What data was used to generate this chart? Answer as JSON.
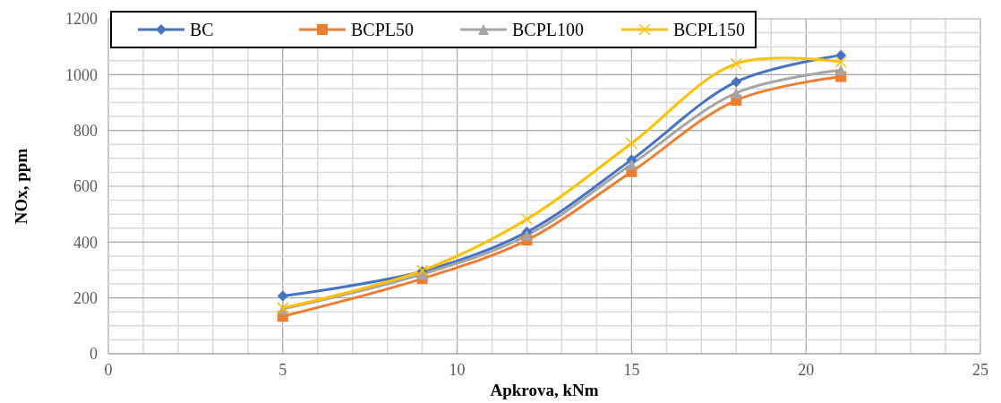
{
  "chart_data": {
    "type": "line",
    "xlabel": "Apkrova, kNm",
    "ylabel": "NOx, ppm",
    "x": [
      5,
      9,
      12,
      15,
      18,
      21
    ],
    "series": [
      {
        "name": "BC",
        "color": "#4472c4",
        "marker": "diamond",
        "values": [
          207,
          295,
          436,
          695,
          974,
          1069
        ]
      },
      {
        "name": "BCPL50",
        "color": "#ed7d31",
        "marker": "square",
        "values": [
          134,
          269,
          407,
          652,
          908,
          993
        ]
      },
      {
        "name": "BCPL100",
        "color": "#a5a5a5",
        "marker": "triangle",
        "values": [
          160,
          285,
          424,
          679,
          934,
          1016
        ]
      },
      {
        "name": "BCPL150",
        "color": "#ffc000",
        "marker": "cross",
        "values": [
          164,
          298,
          482,
          754,
          1039,
          1046
        ]
      }
    ],
    "xlim": [
      0,
      25
    ],
    "xticks": [
      0,
      {
        "value": 1,
        "label": null
      },
      {
        "value": 2,
        "label": null
      },
      {
        "value": 3,
        "label": null
      },
      {
        "value": 4,
        "label": null
      },
      5,
      {
        "value": 6,
        "label": null
      },
      {
        "value": 7,
        "label": null
      },
      {
        "value": 8,
        "label": null
      },
      {
        "value": 9,
        "label": null
      },
      10,
      {
        "value": 11,
        "label": null
      },
      {
        "value": 12,
        "label": null
      },
      {
        "value": 13,
        "label": null
      },
      {
        "value": 14,
        "label": null
      },
      15,
      {
        "value": 16,
        "label": null
      },
      {
        "value": 17,
        "label": null
      },
      {
        "value": 18,
        "label": null
      },
      {
        "value": 19,
        "label": null
      },
      20,
      {
        "value": 21,
        "label": null
      },
      {
        "value": 22,
        "label": null
      },
      {
        "value": 23,
        "label": null
      },
      {
        "value": 24,
        "label": null
      },
      25
    ],
    "ylim": [
      0,
      1200
    ],
    "yticks": [
      0,
      {
        "value": 50,
        "label": null
      },
      {
        "value": 100,
        "label": null
      },
      {
        "value": 150,
        "label": null
      },
      200,
      {
        "value": 250,
        "label": null
      },
      {
        "value": 300,
        "label": null
      },
      {
        "value": 350,
        "label": null
      },
      400,
      {
        "value": 450,
        "label": null
      },
      {
        "value": 500,
        "label": null
      },
      {
        "value": 550,
        "label": null
      },
      600,
      {
        "value": 650,
        "label": null
      },
      {
        "value": 700,
        "label": null
      },
      {
        "value": 750,
        "label": null
      },
      800,
      {
        "value": 850,
        "label": null
      },
      {
        "value": 900,
        "label": null
      },
      {
        "value": 950,
        "label": null
      },
      1000,
      {
        "value": 1050,
        "label": null
      },
      {
        "value": 1100,
        "label": null
      },
      {
        "value": 1150,
        "label": null
      },
      1200
    ],
    "grid": true,
    "legend": "top left",
    "line_style": "solid"
  }
}
